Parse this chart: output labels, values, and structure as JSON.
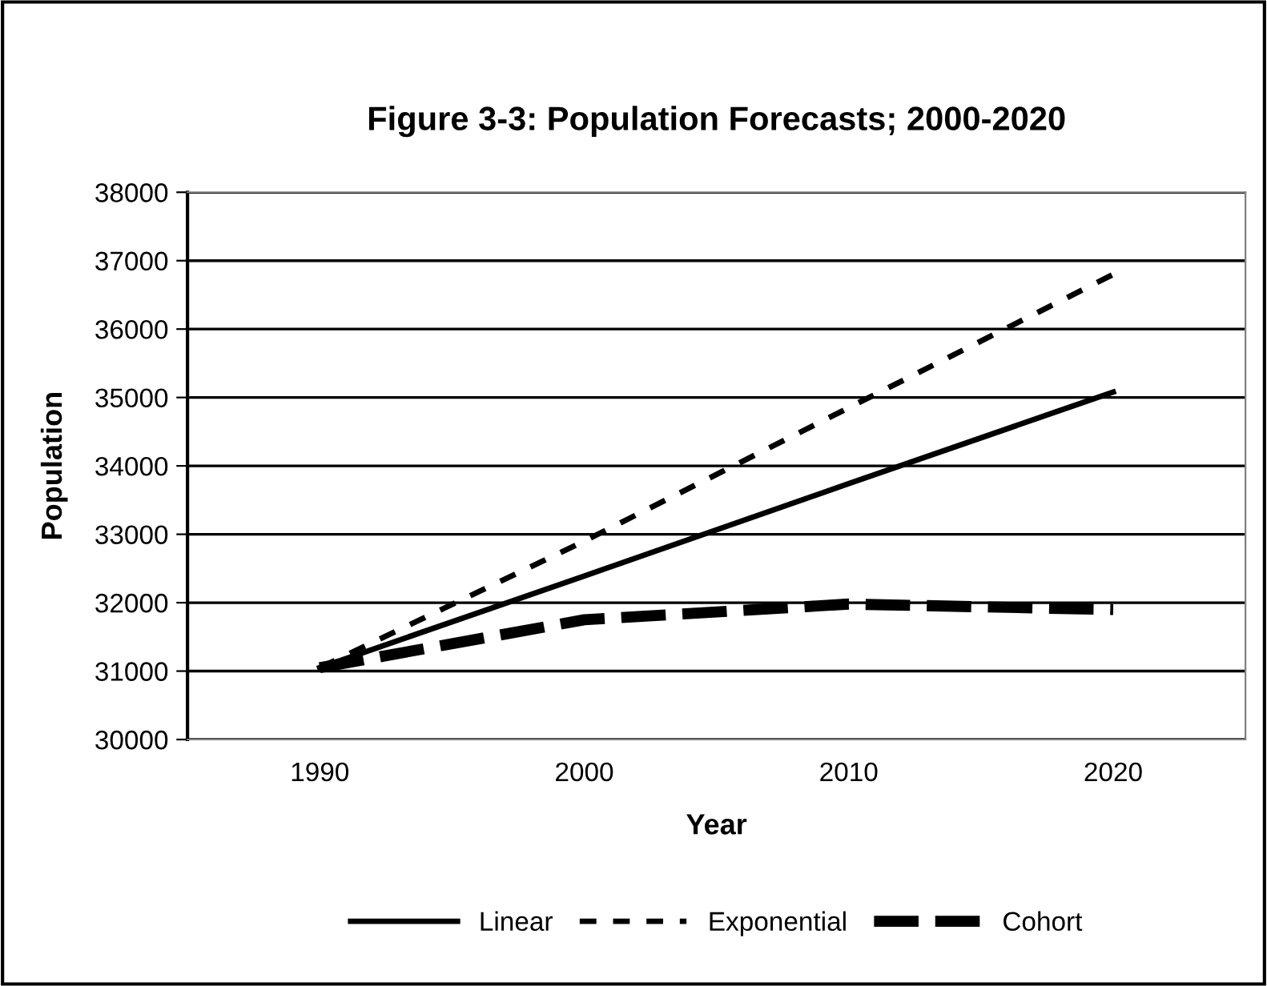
{
  "chart_data": {
    "type": "line",
    "title": "Figure 3-3: Population Forecasts; 2000-2020",
    "xlabel": "Year",
    "ylabel": "Population",
    "categories": [
      "1990",
      "2000",
      "2010",
      "2020"
    ],
    "series": [
      {
        "name": "Linear",
        "color": "#000000",
        "line_style": "solid",
        "values": [
          31050,
          32390,
          33740,
          35080
        ]
      },
      {
        "name": "Exponential",
        "color": "#000000",
        "line_style": "dashed",
        "values": [
          31050,
          32900,
          34850,
          36800
        ]
      },
      {
        "name": "Cohort",
        "color": "#000000",
        "line_style": "dashed",
        "values": [
          31050,
          31750,
          31980,
          31900
        ]
      }
    ],
    "ylim": [
      30000,
      38000
    ],
    "yticks": [
      30000,
      31000,
      32000,
      33000,
      34000,
      35000,
      36000,
      37000,
      38000
    ],
    "grid": "y",
    "legend": "bottom",
    "marker": "none"
  }
}
